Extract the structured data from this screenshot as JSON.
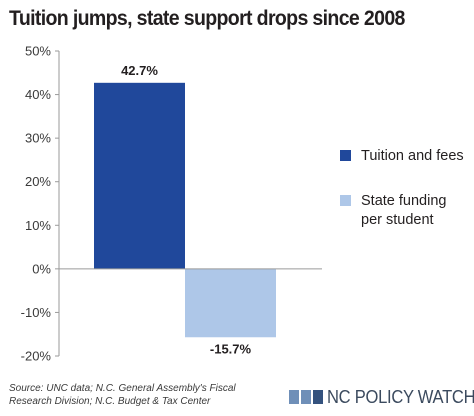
{
  "chart_data": {
    "type": "bar",
    "title": "Tuition jumps, state support drops since 2008",
    "series": [
      {
        "name": "Tuition and fees",
        "value": 42.7,
        "label": "42.7%",
        "color": "#20489b"
      },
      {
        "name": "State funding per student",
        "name_lines": [
          "State funding",
          "per student"
        ],
        "value": -15.7,
        "label": "-15.7%",
        "color": "#aec7e8"
      }
    ],
    "yticks": [
      50,
      40,
      30,
      20,
      10,
      0,
      -10,
      -20
    ],
    "ytick_labels": [
      "50%",
      "40%",
      "30%",
      "20%",
      "10%",
      "0%",
      "-10%",
      "-20%"
    ],
    "ylim": [
      -20,
      50
    ],
    "grid": false,
    "legend": "right"
  },
  "footer": {
    "source": "Source: UNC data; N.C. General Assembly's Fiscal Research Division; N.C. Budget & Tax Center",
    "logo_text": "NC POLICY WATCH",
    "logo_colors": [
      "#6f8fb8",
      "#34527e"
    ]
  }
}
